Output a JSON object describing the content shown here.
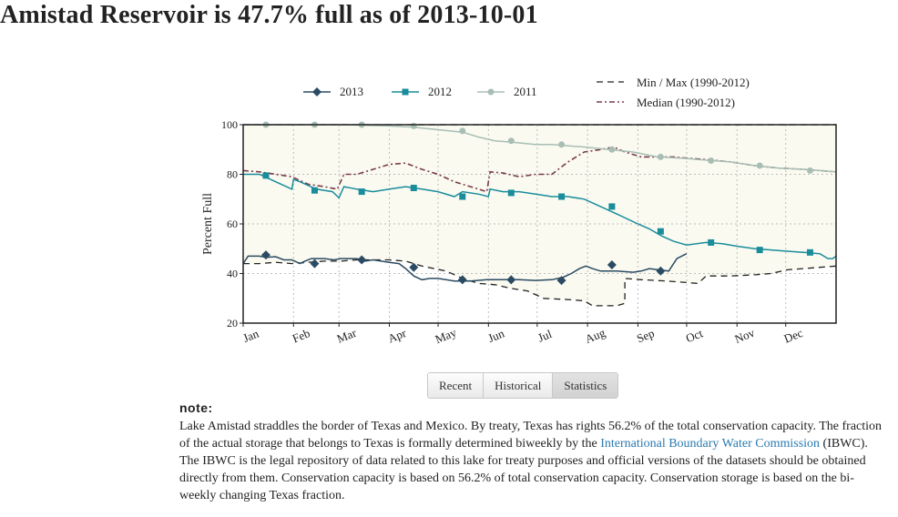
{
  "page": {
    "title": "Amistad Reservoir is 47.7% full as of 2013-10-01"
  },
  "tabs": [
    {
      "label": "Recent",
      "active": false
    },
    {
      "label": "Historical",
      "active": false
    },
    {
      "label": "Statistics",
      "active": true
    }
  ],
  "note": {
    "heading": "note:",
    "text_before_link": "Lake Amistad straddles the border of Texas and Mexico. By treaty, Texas has rights 56.2% of the total conservation capacity. The fraction of the actual storage that belongs to Texas is formally determined biweekly by the ",
    "link_text": "International Boundary Water Commission",
    "text_after_link": " (IBWC). The IBWC is the legal repository of data related to this lake for treaty purposes and official versions of the datasets should be obtained directly from them. Conservation capacity is based on 56.2% of total conservation capacity. Conservation storage is based on the bi-weekly changing Texas fraction."
  },
  "chart_data": {
    "type": "line",
    "ylabel": "Percent Full",
    "xlabel": "",
    "ylim": [
      20,
      100
    ],
    "yticks": [
      20,
      40,
      60,
      80,
      100
    ],
    "xlim": [
      0,
      365
    ],
    "months": [
      {
        "label": "Jan",
        "day": 0
      },
      {
        "label": "Feb",
        "day": 31
      },
      {
        "label": "Mar",
        "day": 59
      },
      {
        "label": "Apr",
        "day": 90
      },
      {
        "label": "May",
        "day": 120
      },
      {
        "label": "Jun",
        "day": 151
      },
      {
        "label": "Jul",
        "day": 181
      },
      {
        "label": "Aug",
        "day": 212
      },
      {
        "label": "Sep",
        "day": 243
      },
      {
        "label": "Oct",
        "day": 273
      },
      {
        "label": "Nov",
        "day": 304
      },
      {
        "label": "Dec",
        "day": 334
      }
    ],
    "grid": true,
    "legend_position": "top",
    "envelope_fill": "#fafaf0",
    "series": [
      {
        "name": "2013",
        "color": "#2a4b63",
        "marker": "diamond",
        "dash": "",
        "points": [
          [
            0,
            44
          ],
          [
            3,
            47
          ],
          [
            10,
            47
          ],
          [
            14,
            46.5
          ],
          [
            20,
            46.8
          ],
          [
            25,
            45.5
          ],
          [
            30,
            45.5
          ],
          [
            35,
            44
          ],
          [
            38,
            45
          ],
          [
            42,
            46
          ],
          [
            45,
            46
          ],
          [
            50,
            46
          ],
          [
            56,
            45.5
          ],
          [
            60,
            46
          ],
          [
            70,
            46
          ],
          [
            75,
            45
          ],
          [
            80,
            45.5
          ],
          [
            90,
            44.5
          ],
          [
            96,
            44
          ],
          [
            100,
            42
          ],
          [
            105,
            39
          ],
          [
            110,
            37.5
          ],
          [
            115,
            38
          ],
          [
            120,
            38
          ],
          [
            130,
            37
          ],
          [
            140,
            37
          ],
          [
            150,
            37.5
          ],
          [
            160,
            37.5
          ],
          [
            170,
            37.5
          ],
          [
            180,
            37.2
          ],
          [
            190,
            37.5
          ],
          [
            197,
            38.5
          ],
          [
            202,
            40
          ],
          [
            207,
            42
          ],
          [
            211,
            43
          ],
          [
            215,
            42
          ],
          [
            220,
            41
          ],
          [
            230,
            41
          ],
          [
            240,
            40.5
          ],
          [
            245,
            41
          ],
          [
            250,
            42
          ],
          [
            262,
            41
          ],
          [
            267,
            46
          ],
          [
            273,
            48
          ]
        ],
        "markers": [
          [
            14,
            47.5
          ],
          [
            44,
            44
          ],
          [
            73,
            45.5
          ],
          [
            105,
            42.5
          ],
          [
            135,
            37.5
          ],
          [
            165,
            37.5
          ],
          [
            196,
            37.2
          ],
          [
            227,
            43.5
          ],
          [
            257,
            41
          ]
        ]
      },
      {
        "name": "2012",
        "color": "#1a8c9c",
        "marker": "square",
        "dash": "",
        "points": [
          [
            0,
            80
          ],
          [
            10,
            80
          ],
          [
            20,
            77
          ],
          [
            30,
            74
          ],
          [
            31,
            78
          ],
          [
            35,
            77
          ],
          [
            45,
            74
          ],
          [
            55,
            73
          ],
          [
            59,
            70.5
          ],
          [
            62,
            75
          ],
          [
            70,
            74
          ],
          [
            80,
            73
          ],
          [
            90,
            74
          ],
          [
            100,
            75
          ],
          [
            110,
            74
          ],
          [
            120,
            73
          ],
          [
            130,
            71
          ],
          [
            135,
            73
          ],
          [
            145,
            72
          ],
          [
            151,
            71
          ],
          [
            152,
            74
          ],
          [
            160,
            73
          ],
          [
            170,
            73
          ],
          [
            180,
            72
          ],
          [
            190,
            71
          ],
          [
            200,
            71
          ],
          [
            210,
            70
          ],
          [
            220,
            67
          ],
          [
            230,
            64
          ],
          [
            243,
            60
          ],
          [
            250,
            58
          ],
          [
            258,
            55
          ],
          [
            265,
            53
          ],
          [
            273,
            51.5
          ],
          [
            285,
            52.5
          ],
          [
            295,
            52
          ],
          [
            304,
            51
          ],
          [
            315,
            50
          ],
          [
            325,
            49.5
          ],
          [
            335,
            49
          ],
          [
            345,
            48.5
          ],
          [
            355,
            48
          ],
          [
            360,
            46
          ],
          [
            363,
            46
          ],
          [
            365,
            47
          ]
        ],
        "markers": [
          [
            14,
            79.5
          ],
          [
            44,
            73.5
          ],
          [
            73,
            73
          ],
          [
            105,
            74.5
          ],
          [
            135,
            71
          ],
          [
            165,
            72.5
          ],
          [
            196,
            71
          ],
          [
            227,
            67
          ],
          [
            257,
            57
          ],
          [
            288,
            52.5
          ],
          [
            318,
            49.5
          ],
          [
            349,
            48.5
          ]
        ]
      },
      {
        "name": "2011",
        "color": "#a8beb5",
        "marker": "circle",
        "dash": "",
        "points": [
          [
            0,
            100
          ],
          [
            30,
            100
          ],
          [
            60,
            100
          ],
          [
            90,
            99.5
          ],
          [
            105,
            99
          ],
          [
            120,
            98
          ],
          [
            135,
            97
          ],
          [
            145,
            95
          ],
          [
            155,
            93.5
          ],
          [
            165,
            93
          ],
          [
            180,
            92
          ],
          [
            190,
            92
          ],
          [
            200,
            91.5
          ],
          [
            210,
            91
          ],
          [
            225,
            90
          ],
          [
            240,
            89
          ],
          [
            255,
            87
          ],
          [
            270,
            86.5
          ],
          [
            280,
            86
          ],
          [
            290,
            85.5
          ],
          [
            300,
            85
          ],
          [
            315,
            83.5
          ],
          [
            330,
            82.5
          ],
          [
            345,
            82
          ],
          [
            355,
            81.5
          ],
          [
            365,
            81
          ]
        ],
        "markers": [
          [
            14,
            100
          ],
          [
            44,
            100
          ],
          [
            73,
            100
          ],
          [
            105,
            99.5
          ],
          [
            135,
            97.5
          ],
          [
            165,
            93.5
          ],
          [
            196,
            92
          ],
          [
            227,
            90
          ],
          [
            257,
            87
          ],
          [
            288,
            85.5
          ],
          [
            318,
            83.5
          ],
          [
            349,
            81.5
          ]
        ]
      },
      {
        "name": "Min / Max (1990-2012)",
        "color": "#222222",
        "marker": "none",
        "dash": "7 5",
        "points": [
          [
            0,
            44
          ],
          [
            10,
            44
          ],
          [
            20,
            44.5
          ],
          [
            30,
            44
          ],
          [
            40,
            44.5
          ],
          [
            50,
            45
          ],
          [
            60,
            45
          ],
          [
            70,
            45.5
          ],
          [
            80,
            45.5
          ],
          [
            90,
            45.5
          ],
          [
            100,
            45
          ],
          [
            110,
            43
          ],
          [
            125,
            41
          ],
          [
            135,
            38
          ],
          [
            145,
            36
          ],
          [
            155,
            35.5
          ],
          [
            165,
            34
          ],
          [
            175,
            33
          ],
          [
            185,
            30
          ],
          [
            200,
            29.5
          ],
          [
            210,
            29
          ],
          [
            215,
            27
          ],
          [
            230,
            27
          ],
          [
            235,
            28
          ],
          [
            235,
            38
          ],
          [
            245,
            37.5
          ],
          [
            260,
            37
          ],
          [
            270,
            36.5
          ],
          [
            280,
            36
          ],
          [
            285,
            39
          ],
          [
            300,
            39
          ],
          [
            315,
            39.5
          ],
          [
            325,
            40
          ],
          [
            335,
            41.5
          ],
          [
            345,
            42
          ],
          [
            355,
            42.5
          ],
          [
            365,
            43
          ]
        ],
        "points_max": [
          [
            0,
            100
          ],
          [
            365,
            100
          ]
        ]
      },
      {
        "name": "Median (1990-2012)",
        "color": "#7a3b4a",
        "marker": "none",
        "dash": "6 3 2 3",
        "points": [
          [
            0,
            81.5
          ],
          [
            10,
            81
          ],
          [
            20,
            80
          ],
          [
            30,
            79
          ],
          [
            40,
            76
          ],
          [
            50,
            75
          ],
          [
            58,
            74
          ],
          [
            62,
            80
          ],
          [
            70,
            80
          ],
          [
            80,
            82
          ],
          [
            90,
            84
          ],
          [
            100,
            84.5
          ],
          [
            110,
            82
          ],
          [
            120,
            80
          ],
          [
            130,
            77
          ],
          [
            140,
            75
          ],
          [
            150,
            73
          ],
          [
            152,
            81
          ],
          [
            160,
            80.5
          ],
          [
            170,
            79
          ],
          [
            180,
            80
          ],
          [
            190,
            80
          ],
          [
            200,
            85
          ],
          [
            210,
            89
          ],
          [
            220,
            90
          ],
          [
            228,
            91
          ],
          [
            235,
            89
          ],
          [
            245,
            87
          ],
          [
            255,
            87
          ],
          [
            265,
            87
          ],
          [
            273,
            86.5
          ],
          [
            285,
            86
          ],
          [
            300,
            85
          ],
          [
            315,
            83.5
          ],
          [
            330,
            82.5
          ],
          [
            345,
            82
          ],
          [
            365,
            81
          ]
        ]
      }
    ]
  }
}
